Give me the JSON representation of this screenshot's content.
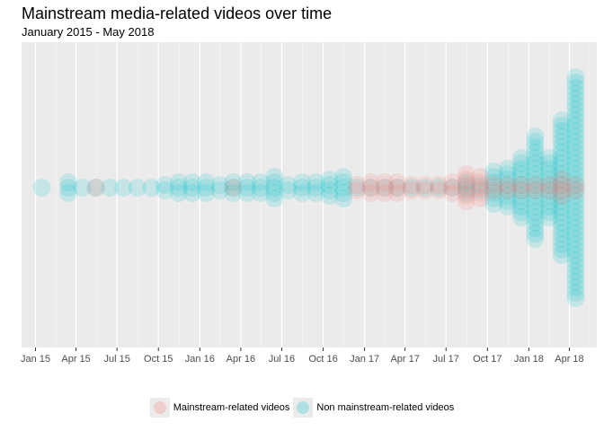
{
  "chart_data": {
    "type": "scatter",
    "title": "Mainstream media-related videos over time",
    "subtitle": "January 2015 - May 2018",
    "x_ticks": [
      "Jan 15",
      "Apr 15",
      "Jul 15",
      "Oct 15",
      "Jan 16",
      "Apr 16",
      "Jul 16",
      "Oct 16",
      "Jan 17",
      "Apr 17",
      "Jul 17",
      "Oct 17",
      "Jan 18",
      "Apr 18"
    ],
    "xlim": [
      "2014-12-01",
      "2018-06-01"
    ],
    "grid": true,
    "legend_position": "bottom",
    "colors": {
      "mainstream": "#f8766d",
      "non_mainstream": "#00bfc4",
      "panel": "#ebebeb",
      "grid": "#ffffff"
    },
    "series": [
      {
        "name": "Mainstream-related videos",
        "key": "mainstream",
        "months": [
          "2015-05",
          "2016-03",
          "2016-12",
          "2017-01",
          "2017-02",
          "2017-03",
          "2017-04",
          "2017-05",
          "2017-06",
          "2017-07",
          "2017-08",
          "2017-09",
          "2017-10",
          "2017-11",
          "2017-12",
          "2018-01",
          "2018-02",
          "2018-03",
          "2018-04"
        ],
        "counts": [
          1,
          1,
          2,
          3,
          3,
          3,
          2,
          2,
          2,
          3,
          6,
          5,
          2,
          2,
          2,
          2,
          2,
          4,
          2
        ]
      },
      {
        "name": "Non mainstream-related videos",
        "key": "non_mainstream",
        "months": [
          "2015-01",
          "2015-03",
          "2015-04",
          "2015-05",
          "2015-06",
          "2015-07",
          "2015-08",
          "2015-09",
          "2015-10",
          "2015-11",
          "2015-12",
          "2016-01",
          "2016-02",
          "2016-03",
          "2016-04",
          "2016-05",
          "2016-06",
          "2016-07",
          "2016-08",
          "2016-09",
          "2016-10",
          "2016-11",
          "2016-12",
          "2017-01",
          "2017-02",
          "2017-03",
          "2017-04",
          "2017-05",
          "2017-06",
          "2017-07",
          "2017-08",
          "2017-09",
          "2017-10",
          "2017-11",
          "2017-12",
          "2018-01",
          "2018-02",
          "2018-03",
          "2018-04"
        ],
        "counts": [
          1,
          3,
          1,
          1,
          1,
          1,
          1,
          1,
          2,
          3,
          3,
          3,
          2,
          3,
          3,
          3,
          5,
          2,
          3,
          3,
          4,
          5,
          1,
          1,
          1,
          1,
          1,
          1,
          1,
          1,
          3,
          2,
          7,
          8,
          12,
          20,
          12,
          26,
          42
        ]
      }
    ]
  }
}
